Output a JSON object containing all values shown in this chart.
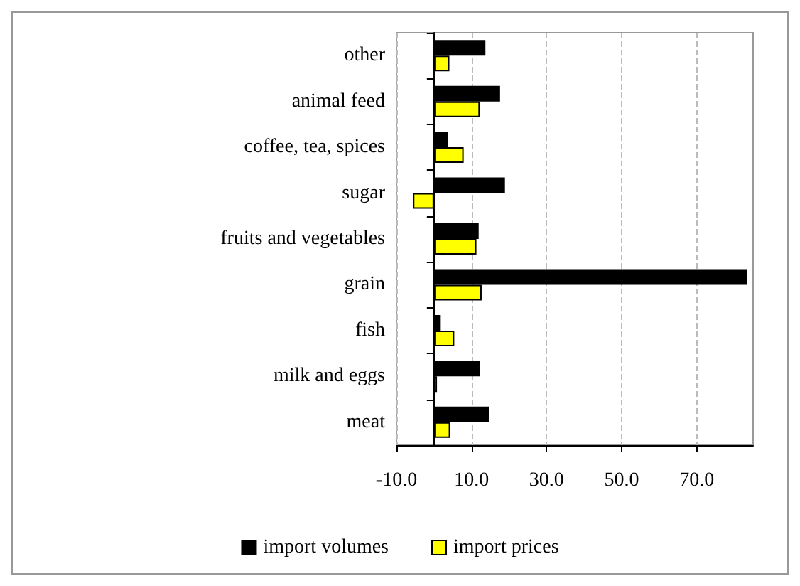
{
  "chart_data": {
    "type": "bar",
    "orientation": "horizontal",
    "categories": [
      "other",
      "animal feed",
      "coffee, tea, spices",
      "sugar",
      "fruits and vegetables",
      "grain",
      "fish",
      "milk and eggs",
      "meat"
    ],
    "series": [
      {
        "name": "import volumes",
        "color": "#000000",
        "values": [
          13.7,
          17.6,
          3.7,
          18.9,
          11.9,
          83.4,
          1.8,
          12.3,
          14.6
        ]
      },
      {
        "name": "import prices",
        "color": "#ffff00",
        "values": [
          4.1,
          12.2,
          7.9,
          -5.6,
          11.3,
          12.7,
          5.4,
          0.8,
          4.3
        ]
      }
    ],
    "xlim": [
      -10,
      85
    ],
    "xticks": [
      {
        "value": -10,
        "label": "-10.0"
      },
      {
        "value": 10,
        "label": "10.0"
      },
      {
        "value": 30,
        "label": "30.0"
      },
      {
        "value": 50,
        "label": "50.0"
      },
      {
        "value": 70,
        "label": "70.0"
      }
    ],
    "grid": "x",
    "legend": "bottom"
  }
}
